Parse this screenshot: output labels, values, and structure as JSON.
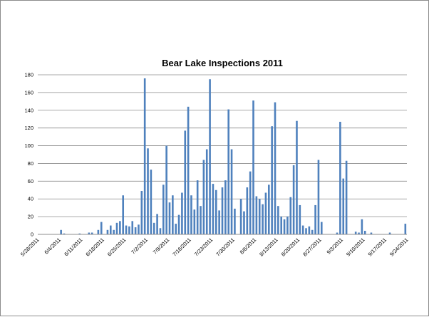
{
  "chart_data": {
    "type": "bar",
    "title": "Bear Lake Inspections 2011",
    "xlabel": "",
    "ylabel": "",
    "ylim": [
      0,
      180
    ],
    "y_ticks": [
      0,
      20,
      40,
      60,
      80,
      100,
      120,
      140,
      160,
      180
    ],
    "x_tick_labels": [
      "5/28/2011",
      "6/4/2011",
      "6/11/2011",
      "6/18/2011",
      "6/25/2011",
      "7/2/2011",
      "7/9/2011",
      "7/16/2011",
      "7/23/2011",
      "7/30/2011",
      "8/6/2011",
      "8/13/2011",
      "8/20/2011",
      "8/27/2011",
      "9/3/2011",
      "9/10/2011",
      "9/17/2011",
      "9/24/2011"
    ],
    "grid": true,
    "legend": "none",
    "bar_color": "#4f81bd",
    "values": [
      0,
      0,
      0,
      0,
      0,
      0,
      0,
      5,
      1,
      0,
      0,
      0,
      0,
      1,
      0,
      0,
      2,
      2,
      0,
      5,
      14,
      0,
      5,
      10,
      5,
      13,
      15,
      44,
      10,
      9,
      15,
      8,
      11,
      49,
      176,
      97,
      73,
      13,
      23,
      7,
      56,
      100,
      36,
      44,
      12,
      22,
      47,
      117,
      144,
      44,
      28,
      61,
      32,
      84,
      96,
      175,
      57,
      50,
      27,
      53,
      61,
      141,
      96,
      29,
      0,
      40,
      26,
      53,
      71,
      151,
      43,
      40,
      34,
      47,
      56,
      122,
      149,
      32,
      20,
      17,
      20,
      42,
      78,
      128,
      33,
      10,
      7,
      9,
      5,
      33,
      84,
      14,
      0,
      0,
      0,
      0,
      2,
      127,
      63,
      83,
      0,
      0,
      3,
      2,
      17,
      4,
      0,
      2,
      0,
      0,
      0,
      0,
      0,
      2,
      0,
      0,
      0,
      0,
      12
    ]
  }
}
